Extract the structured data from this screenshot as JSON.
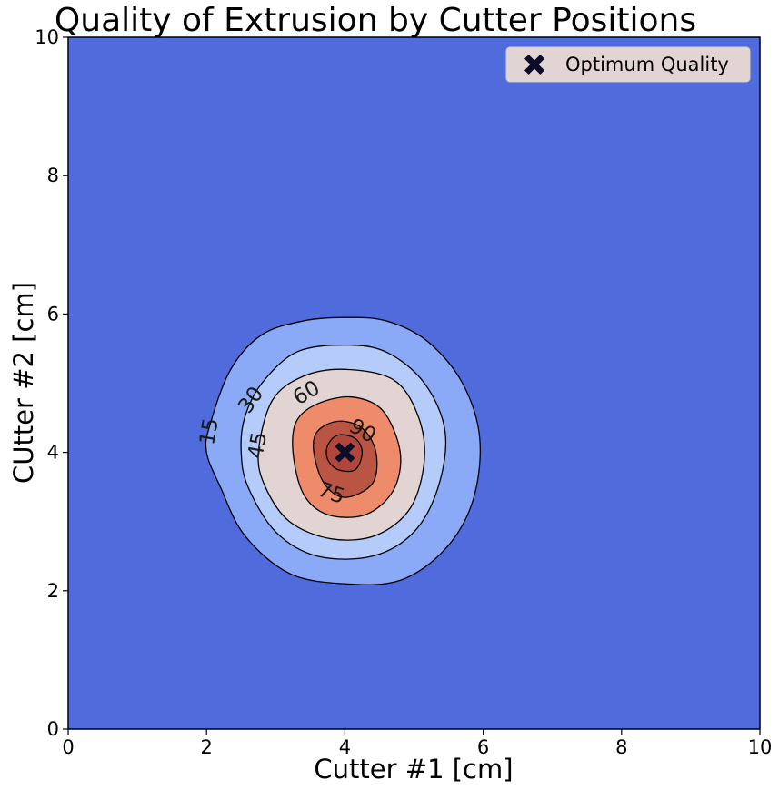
{
  "chart_data": {
    "type": "contour",
    "title": "Quality of Extrusion by Cutter Positions",
    "xlabel": "Cutter #1 [cm]",
    "ylabel": "CUtter #2 [cm]",
    "xlim": [
      0,
      10
    ],
    "ylim": [
      0,
      10
    ],
    "xticks": [
      0,
      2,
      4,
      6,
      8,
      10
    ],
    "yticks": [
      0,
      2,
      4,
      6,
      8,
      10
    ],
    "grid": false,
    "colormap": "coolwarm",
    "levels": [
      15,
      30,
      45,
      60,
      75,
      90
    ],
    "level_colors": [
      "#4f6bdc",
      "#8aaaf8",
      "#b5cbfa",
      "#e2d4d2",
      "#ee8b6b",
      "#bb5543",
      "#b0473a"
    ],
    "contours": [
      {
        "level": 15,
        "points": [
          [
            2.05,
            4.4
          ],
          [
            2.35,
            5.2
          ],
          [
            2.8,
            5.7
          ],
          [
            3.4,
            5.9
          ],
          [
            4.0,
            5.95
          ],
          [
            4.6,
            5.9
          ],
          [
            5.2,
            5.6
          ],
          [
            5.7,
            5.0
          ],
          [
            5.95,
            4.2
          ],
          [
            5.85,
            3.3
          ],
          [
            5.45,
            2.6
          ],
          [
            4.8,
            2.15
          ],
          [
            4.0,
            2.1
          ],
          [
            3.2,
            2.25
          ],
          [
            2.55,
            2.8
          ],
          [
            2.2,
            3.5
          ],
          [
            2.0,
            4.0
          ]
        ]
      },
      {
        "level": 30,
        "points": [
          [
            2.55,
            4.5
          ],
          [
            2.8,
            5.0
          ],
          [
            3.3,
            5.45
          ],
          [
            4.0,
            5.55
          ],
          [
            4.6,
            5.45
          ],
          [
            5.15,
            5.0
          ],
          [
            5.45,
            4.3
          ],
          [
            5.35,
            3.5
          ],
          [
            5.0,
            2.85
          ],
          [
            4.4,
            2.5
          ],
          [
            3.6,
            2.5
          ],
          [
            3.0,
            2.85
          ],
          [
            2.6,
            3.5
          ],
          [
            2.5,
            4.0
          ]
        ]
      },
      {
        "level": 45,
        "points": [
          [
            2.75,
            4.0
          ],
          [
            2.95,
            4.75
          ],
          [
            3.4,
            5.1
          ],
          [
            4.0,
            5.2
          ],
          [
            4.7,
            5.05
          ],
          [
            5.05,
            4.55
          ],
          [
            5.15,
            3.9
          ],
          [
            4.95,
            3.2
          ],
          [
            4.45,
            2.8
          ],
          [
            3.8,
            2.75
          ],
          [
            3.2,
            3.0
          ],
          [
            2.85,
            3.5
          ]
        ]
      },
      {
        "level": 60,
        "points": [
          [
            3.25,
            4.0
          ],
          [
            3.3,
            4.45
          ],
          [
            3.6,
            4.7
          ],
          [
            4.1,
            4.8
          ],
          [
            4.55,
            4.6
          ],
          [
            4.8,
            4.0
          ],
          [
            4.7,
            3.45
          ],
          [
            4.3,
            3.1
          ],
          [
            3.75,
            3.1
          ],
          [
            3.4,
            3.4
          ]
        ]
      },
      {
        "level": 75,
        "points": [
          [
            3.55,
            4.0
          ],
          [
            3.6,
            4.3
          ],
          [
            3.9,
            4.45
          ],
          [
            4.25,
            4.35
          ],
          [
            4.45,
            4.0
          ],
          [
            4.4,
            3.55
          ],
          [
            4.0,
            3.35
          ],
          [
            3.7,
            3.55
          ]
        ]
      },
      {
        "level": 90,
        "points": [
          [
            3.75,
            4.1
          ],
          [
            3.9,
            4.25
          ],
          [
            4.15,
            4.2
          ],
          [
            4.25,
            4.0
          ],
          [
            4.15,
            3.75
          ],
          [
            3.9,
            3.75
          ],
          [
            3.75,
            3.9
          ]
        ]
      }
    ],
    "contour_labels": [
      {
        "text": "15",
        "x": 2.05,
        "y": 4.3,
        "rotation": -80
      },
      {
        "text": "30",
        "x": 2.65,
        "y": 4.75,
        "rotation": -55
      },
      {
        "text": "45",
        "x": 2.75,
        "y": 4.1,
        "rotation": -80
      },
      {
        "text": "60",
        "x": 3.45,
        "y": 4.85,
        "rotation": -30
      },
      {
        "text": "75",
        "x": 3.8,
        "y": 3.4,
        "rotation": 20
      },
      {
        "text": "90",
        "x": 4.25,
        "y": 4.3,
        "rotation": 30
      }
    ],
    "markers": [
      {
        "name": "Optimum Quality",
        "x": 4.0,
        "y": 4.0,
        "symbol": "X",
        "color": "#0d0d2b"
      }
    ],
    "legend": {
      "position": "top-right",
      "entries": [
        "Optimum Quality"
      ],
      "background": "#e2d4d2"
    }
  }
}
